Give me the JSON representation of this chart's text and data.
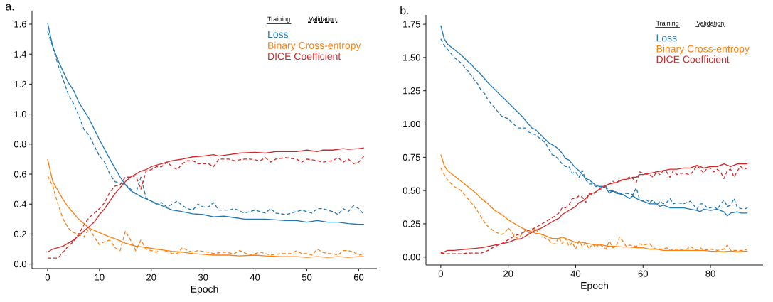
{
  "chart_data": [
    {
      "type": "line",
      "title": "a.",
      "xlabel": "Epoch",
      "legend": "top right",
      "annotations": [
        "Training",
        "Validation"
      ],
      "xlim": [
        -3,
        63.5
      ],
      "ylim": [
        -0.03,
        1.69
      ],
      "xticks": [
        0,
        10,
        20,
        30,
        40,
        50,
        60
      ],
      "yticks": [
        {
          "value": 0,
          "label": "0.0"
        },
        0.2,
        0.4,
        0.6,
        0.8,
        {
          "value": 1,
          "label": "1.0"
        },
        1.2,
        1.4,
        1.6
      ],
      "series": [
        {
          "name": "Loss",
          "color": "#1f77b4",
          "line_style": "solid",
          "x": [
            0,
            1,
            2,
            4,
            5,
            6,
            8,
            9,
            10,
            12,
            14,
            15,
            16,
            18,
            20,
            22,
            24,
            26,
            28,
            30,
            32,
            34,
            36,
            38,
            40,
            42,
            44,
            46,
            48,
            50,
            52,
            54,
            56,
            58,
            60,
            61
          ],
          "values": [
            1.61,
            1.45,
            1.36,
            1.21,
            1.16,
            1.08,
            0.97,
            0.9,
            0.83,
            0.7,
            0.58,
            0.53,
            0.49,
            0.45,
            0.42,
            0.39,
            0.36,
            0.35,
            0.335,
            0.33,
            0.315,
            0.32,
            0.31,
            0.3,
            0.3,
            0.3,
            0.295,
            0.29,
            0.29,
            0.28,
            0.29,
            0.28,
            0.28,
            0.27,
            0.265,
            0.265
          ]
        },
        {
          "name": "Binary Cross-entropy",
          "color": "#ff7f0e",
          "line_style": "solid",
          "x": [
            0,
            1,
            2,
            3,
            4,
            5,
            6,
            7,
            8,
            10,
            12,
            13,
            15,
            17,
            19,
            20,
            22,
            24,
            26,
            28,
            30,
            32,
            35,
            37,
            40,
            42,
            45,
            48,
            50,
            52,
            54,
            56,
            58,
            60,
            61
          ],
          "values": [
            0.7,
            0.55,
            0.49,
            0.43,
            0.38,
            0.34,
            0.3,
            0.27,
            0.24,
            0.21,
            0.18,
            0.17,
            0.14,
            0.12,
            0.11,
            0.105,
            0.095,
            0.085,
            0.08,
            0.07,
            0.065,
            0.06,
            0.06,
            0.055,
            0.06,
            0.055,
            0.05,
            0.05,
            0.045,
            0.05,
            0.045,
            0.05,
            0.045,
            0.05,
            0.05
          ]
        },
        {
          "name": "DICE Coefficient",
          "color": "#d62728",
          "line_style": "solid",
          "x": [
            0,
            1,
            3,
            4,
            5,
            6,
            7,
            8,
            9,
            10,
            11,
            12,
            13,
            14,
            15,
            16,
            17,
            18,
            19,
            20,
            22,
            24,
            26,
            28,
            30,
            32,
            33,
            35,
            37,
            40,
            42,
            44,
            46,
            48,
            50,
            52,
            53,
            55,
            57,
            58,
            60,
            61
          ],
          "values": [
            0.08,
            0.1,
            0.12,
            0.14,
            0.16,
            0.19,
            0.22,
            0.25,
            0.28,
            0.33,
            0.37,
            0.42,
            0.47,
            0.51,
            0.55,
            0.58,
            0.6,
            0.62,
            0.63,
            0.65,
            0.67,
            0.69,
            0.7,
            0.715,
            0.72,
            0.73,
            0.72,
            0.73,
            0.74,
            0.745,
            0.74,
            0.75,
            0.75,
            0.75,
            0.76,
            0.75,
            0.76,
            0.76,
            0.77,
            0.765,
            0.77,
            0.775
          ]
        },
        {
          "color": "#1f77b4",
          "line_style": "dashed",
          "x": [
            0,
            1,
            2,
            4,
            5,
            6,
            7,
            8,
            9,
            10,
            11,
            12,
            13,
            14,
            15,
            16,
            17,
            18,
            19,
            20,
            21,
            22,
            23,
            24,
            25,
            26,
            27,
            28,
            29,
            30,
            31,
            32,
            33,
            35,
            36,
            38,
            40,
            42,
            43,
            44,
            46,
            48,
            49,
            51,
            52,
            53,
            55,
            56,
            57,
            58,
            59,
            60,
            61
          ],
          "values": [
            1.55,
            1.45,
            1.33,
            1.13,
            1.07,
            0.99,
            0.9,
            0.86,
            0.79,
            0.72,
            0.68,
            0.6,
            0.55,
            0.54,
            0.53,
            0.5,
            0.47,
            0.58,
            0.44,
            0.42,
            0.4,
            0.41,
            0.38,
            0.4,
            0.42,
            0.39,
            0.37,
            0.36,
            0.4,
            0.38,
            0.38,
            0.41,
            0.36,
            0.36,
            0.37,
            0.34,
            0.36,
            0.34,
            0.37,
            0.34,
            0.33,
            0.35,
            0.36,
            0.34,
            0.37,
            0.37,
            0.35,
            0.33,
            0.37,
            0.35,
            0.39,
            0.37,
            0.33
          ]
        },
        {
          "color": "#ff7f0e",
          "line_style": "dashed",
          "x": [
            0,
            1,
            2,
            3,
            4,
            5,
            6,
            7,
            8,
            9,
            10,
            11,
            12,
            13,
            14,
            15,
            16,
            17,
            18,
            19,
            20,
            21,
            22,
            24,
            25,
            26,
            27,
            28,
            29,
            31,
            32,
            34,
            36,
            37,
            39,
            41,
            43,
            45,
            47,
            48,
            49,
            50,
            51,
            52,
            53,
            54,
            55,
            56,
            57,
            58,
            59,
            60,
            61
          ],
          "values": [
            0.59,
            0.52,
            0.4,
            0.3,
            0.24,
            0.21,
            0.2,
            0.18,
            0.24,
            0.18,
            0.13,
            0.15,
            0.16,
            0.11,
            0.09,
            0.22,
            0.16,
            0.09,
            0.16,
            0.1,
            0.09,
            0.08,
            0.1,
            0.07,
            0.07,
            0.11,
            0.09,
            0.08,
            0.09,
            0.08,
            0.07,
            0.08,
            0.07,
            0.09,
            0.06,
            0.08,
            0.06,
            0.07,
            0.07,
            0.09,
            0.07,
            0.07,
            0.06,
            0.1,
            0.08,
            0.07,
            0.07,
            0.06,
            0.09,
            0.09,
            0.08,
            0.06,
            0.07
          ]
        },
        {
          "color": "#d62728",
          "line_style": "dashed",
          "x": [
            0,
            1,
            2,
            3,
            4,
            5,
            6,
            7,
            8,
            9,
            10,
            11,
            12,
            13,
            14,
            15,
            16,
            17,
            18,
            19,
            20,
            21,
            22,
            23,
            24,
            25,
            26,
            27,
            28,
            29,
            31,
            32,
            33,
            35,
            36,
            38,
            39,
            41,
            42,
            43,
            44,
            46,
            48,
            49,
            50,
            52,
            53,
            55,
            56,
            57,
            58,
            59,
            60,
            61
          ],
          "values": [
            0.04,
            0.04,
            0.04,
            0.08,
            0.12,
            0.15,
            0.2,
            0.26,
            0.31,
            0.34,
            0.37,
            0.41,
            0.48,
            0.52,
            0.53,
            0.58,
            0.58,
            0.59,
            0.5,
            0.62,
            0.63,
            0.65,
            0.65,
            0.68,
            0.65,
            0.63,
            0.67,
            0.69,
            0.69,
            0.67,
            0.67,
            0.65,
            0.7,
            0.7,
            0.69,
            0.7,
            0.7,
            0.69,
            0.71,
            0.68,
            0.7,
            0.71,
            0.7,
            0.68,
            0.7,
            0.69,
            0.68,
            0.69,
            0.71,
            0.68,
            0.7,
            0.67,
            0.68,
            0.72
          ]
        }
      ]
    },
    {
      "type": "line",
      "title": "b.",
      "xlabel": "Epoch",
      "legend": "top right",
      "annotations": [
        "Training",
        "Validation"
      ],
      "xlim": [
        -4.4,
        95.6
      ],
      "ylim": [
        -0.06,
        1.82
      ],
      "xticks": [
        0,
        20,
        40,
        60,
        80
      ],
      "yticks": [
        {
          "value": 0,
          "label": "0.00"
        },
        0.25,
        {
          "value": 0.5,
          "label": "0.50"
        },
        0.75,
        {
          "value": 1,
          "label": "1.00"
        },
        1.25,
        {
          "value": 1.5,
          "label": "1.50"
        },
        1.75
      ],
      "series": [
        {
          "name": "Loss",
          "color": "#1f77b4",
          "line_style": "solid",
          "x": [
            0,
            1,
            2,
            4,
            6,
            8,
            9,
            10,
            12,
            14,
            16,
            18,
            20,
            22,
            24,
            26,
            27,
            28,
            30,
            32,
            34,
            35,
            36,
            37,
            38,
            39,
            40,
            41,
            42,
            43,
            44,
            45,
            46,
            47,
            48,
            49,
            50,
            51,
            52,
            54,
            56,
            57,
            58,
            60,
            62,
            64,
            65,
            66,
            68,
            70,
            72,
            74,
            76,
            77,
            78,
            80,
            82,
            84,
            85,
            86,
            88,
            89,
            91
          ],
          "values": [
            1.74,
            1.64,
            1.6,
            1.56,
            1.52,
            1.47,
            1.45,
            1.42,
            1.37,
            1.31,
            1.26,
            1.21,
            1.16,
            1.11,
            1.06,
            1.0,
            0.97,
            0.96,
            0.91,
            0.86,
            0.83,
            0.81,
            0.78,
            0.74,
            0.73,
            0.7,
            0.67,
            0.65,
            0.62,
            0.59,
            0.58,
            0.56,
            0.54,
            0.53,
            0.53,
            0.52,
            0.48,
            0.5,
            0.48,
            0.47,
            0.44,
            0.46,
            0.44,
            0.42,
            0.4,
            0.4,
            0.38,
            0.39,
            0.37,
            0.37,
            0.37,
            0.36,
            0.35,
            0.34,
            0.36,
            0.35,
            0.36,
            0.34,
            0.31,
            0.33,
            0.34,
            0.33,
            0.33
          ]
        },
        {
          "name": "Binary Cross-entropy",
          "color": "#ff7f0e",
          "line_style": "solid",
          "x": [
            0,
            1,
            2,
            4,
            6,
            8,
            9,
            10,
            12,
            14,
            16,
            18,
            20,
            22,
            24,
            26,
            28,
            30,
            32,
            33,
            35,
            36,
            38,
            40,
            42,
            44,
            46,
            48,
            50,
            52,
            54,
            56,
            58,
            60,
            62,
            64,
            66,
            70,
            74,
            78,
            80,
            84,
            86,
            88,
            91
          ],
          "values": [
            0.77,
            0.69,
            0.65,
            0.61,
            0.57,
            0.53,
            0.51,
            0.49,
            0.44,
            0.4,
            0.35,
            0.32,
            0.28,
            0.25,
            0.22,
            0.2,
            0.18,
            0.17,
            0.15,
            0.14,
            0.14,
            0.15,
            0.13,
            0.11,
            0.11,
            0.1,
            0.09,
            0.09,
            0.08,
            0.08,
            0.075,
            0.075,
            0.07,
            0.07,
            0.06,
            0.06,
            0.05,
            0.05,
            0.05,
            0.05,
            0.045,
            0.04,
            0.045,
            0.04,
            0.045
          ]
        },
        {
          "name": "DICE Coefficient",
          "color": "#d62728",
          "line_style": "solid",
          "x": [
            0,
            1,
            2,
            4,
            6,
            8,
            10,
            12,
            14,
            16,
            18,
            20,
            22,
            24,
            26,
            28,
            30,
            32,
            34,
            35,
            36,
            38,
            40,
            41,
            42,
            43,
            44,
            46,
            48,
            50,
            52,
            54,
            56,
            57,
            58,
            59,
            60,
            62,
            64,
            66,
            68,
            70,
            72,
            74,
            76,
            78,
            80,
            82,
            84,
            86,
            88,
            91
          ],
          "values": [
            0.03,
            0.04,
            0.05,
            0.05,
            0.055,
            0.06,
            0.065,
            0.07,
            0.08,
            0.09,
            0.1,
            0.11,
            0.13,
            0.14,
            0.17,
            0.2,
            0.22,
            0.25,
            0.28,
            0.29,
            0.32,
            0.35,
            0.38,
            0.41,
            0.42,
            0.44,
            0.47,
            0.49,
            0.53,
            0.55,
            0.56,
            0.58,
            0.59,
            0.6,
            0.6,
            0.62,
            0.62,
            0.63,
            0.64,
            0.65,
            0.66,
            0.66,
            0.67,
            0.67,
            0.69,
            0.67,
            0.68,
            0.68,
            0.7,
            0.68,
            0.7,
            0.7
          ]
        },
        {
          "color": "#1f77b4",
          "line_style": "dashed",
          "x": [
            0,
            1,
            2,
            3,
            4,
            6,
            8,
            10,
            11,
            12,
            13,
            14,
            16,
            18,
            19,
            20,
            22,
            23,
            25,
            26,
            28,
            29,
            31,
            33,
            34,
            35,
            36,
            37,
            38,
            39,
            40,
            41,
            42,
            43,
            44,
            45,
            46,
            48,
            49,
            50,
            52,
            54,
            55,
            57,
            58,
            59,
            60,
            61,
            62,
            63,
            64,
            65,
            66,
            67,
            68,
            69,
            70,
            72,
            74,
            75,
            76,
            77,
            78,
            79,
            80,
            81,
            82,
            84,
            85,
            86,
            87,
            88,
            90,
            91
          ],
          "values": [
            1.64,
            1.59,
            1.56,
            1.53,
            1.5,
            1.46,
            1.4,
            1.33,
            1.3,
            1.25,
            1.23,
            1.18,
            1.12,
            1.06,
            1.05,
            1.04,
            0.99,
            0.97,
            0.97,
            0.94,
            0.92,
            0.9,
            0.86,
            0.77,
            0.76,
            0.73,
            0.7,
            0.68,
            0.68,
            0.63,
            0.64,
            0.6,
            0.65,
            0.58,
            0.55,
            0.55,
            0.53,
            0.53,
            0.53,
            0.5,
            0.49,
            0.47,
            0.48,
            0.47,
            0.52,
            0.43,
            0.42,
            0.43,
            0.41,
            0.43,
            0.39,
            0.42,
            0.4,
            0.41,
            0.44,
            0.4,
            0.41,
            0.4,
            0.42,
            0.39,
            0.36,
            0.4,
            0.4,
            0.37,
            0.37,
            0.38,
            0.36,
            0.43,
            0.38,
            0.39,
            0.44,
            0.37,
            0.36,
            0.37
          ]
        },
        {
          "color": "#ff7f0e",
          "line_style": "dashed",
          "x": [
            0,
            1,
            2,
            4,
            6,
            8,
            10,
            12,
            13,
            14,
            16,
            18,
            19,
            20,
            21,
            22,
            23,
            24,
            25,
            26,
            27,
            28,
            29,
            30,
            31,
            32,
            33,
            34,
            35,
            36,
            37,
            38,
            39,
            40,
            41,
            42,
            43,
            44,
            45,
            46,
            47,
            48,
            49,
            50,
            51,
            52,
            53,
            54,
            55,
            56,
            58,
            59,
            60,
            62,
            63,
            64,
            66,
            67,
            68,
            70,
            72,
            73,
            74,
            76,
            77,
            78,
            80,
            82,
            84,
            85,
            86,
            88,
            90,
            91
          ],
          "values": [
            0.67,
            0.62,
            0.58,
            0.53,
            0.5,
            0.44,
            0.38,
            0.3,
            0.26,
            0.23,
            0.19,
            0.17,
            0.18,
            0.22,
            0.19,
            0.15,
            0.14,
            0.17,
            0.2,
            0.18,
            0.19,
            0.22,
            0.18,
            0.17,
            0.14,
            0.13,
            0.1,
            0.1,
            0.15,
            0.1,
            0.14,
            0.08,
            0.11,
            0.06,
            0.12,
            0.08,
            0.11,
            0.06,
            0.1,
            0.07,
            0.1,
            0.08,
            0.06,
            0.12,
            0.07,
            0.08,
            0.15,
            0.12,
            0.08,
            0.09,
            0.08,
            0.1,
            0.09,
            0.1,
            0.07,
            0.06,
            0.06,
            0.07,
            0.05,
            0.06,
            0.05,
            0.06,
            0.08,
            0.05,
            0.07,
            0.05,
            0.06,
            0.05,
            0.06,
            0.09,
            0.05,
            0.05,
            0.05,
            0.06
          ]
        },
        {
          "color": "#d62728",
          "line_style": "dashed",
          "x": [
            0,
            2,
            4,
            6,
            8,
            10,
            12,
            14,
            16,
            18,
            20,
            22,
            24,
            26,
            28,
            30,
            32,
            34,
            35,
            36,
            37,
            38,
            39,
            40,
            41,
            42,
            43,
            44,
            45,
            46,
            48,
            50,
            51,
            52,
            53,
            54,
            55,
            56,
            57,
            58,
            59,
            60,
            62,
            63,
            64,
            65,
            66,
            67,
            68,
            69,
            70,
            71,
            72,
            74,
            75,
            76,
            77,
            78,
            79,
            80,
            81,
            82,
            83,
            84,
            85,
            86,
            87,
            88,
            89,
            90,
            91
          ],
          "values": [
            0.03,
            0.025,
            0.025,
            0.025,
            0.03,
            0.03,
            0.03,
            0.05,
            0.08,
            0.1,
            0.13,
            0.16,
            0.18,
            0.2,
            0.22,
            0.25,
            0.28,
            0.31,
            0.33,
            0.37,
            0.37,
            0.39,
            0.44,
            0.44,
            0.46,
            0.45,
            0.41,
            0.48,
            0.47,
            0.49,
            0.52,
            0.55,
            0.57,
            0.55,
            0.58,
            0.58,
            0.59,
            0.6,
            0.59,
            0.56,
            0.64,
            0.63,
            0.62,
            0.6,
            0.64,
            0.62,
            0.65,
            0.64,
            0.6,
            0.65,
            0.62,
            0.63,
            0.63,
            0.62,
            0.65,
            0.69,
            0.66,
            0.63,
            0.67,
            0.67,
            0.64,
            0.66,
            0.64,
            0.59,
            0.65,
            0.66,
            0.6,
            0.65,
            0.68,
            0.66,
            0.67
          ]
        }
      ]
    }
  ]
}
